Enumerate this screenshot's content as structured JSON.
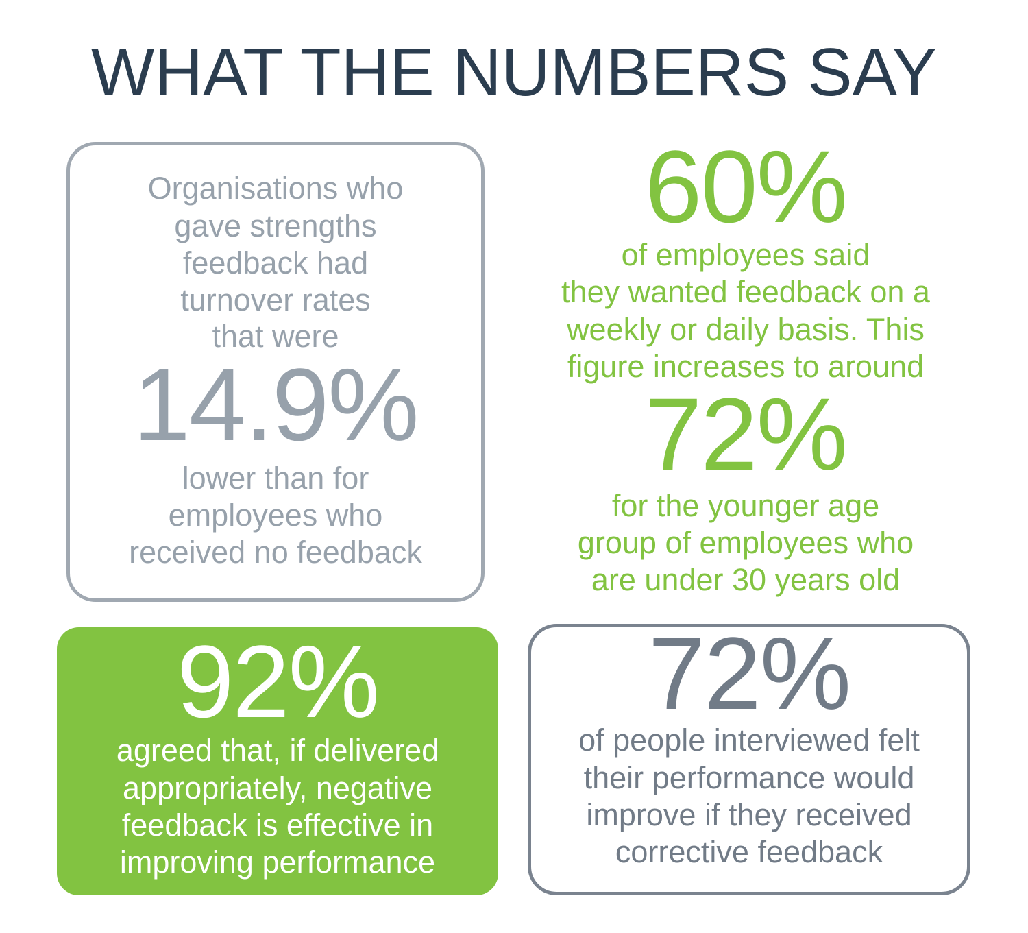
{
  "title": "WHAT THE NUMBERS SAY",
  "panels": [
    {
      "lines_before": [
        "Organisations who",
        "gave strengths",
        "feedback had",
        "turnover rates",
        "that were"
      ],
      "stat": "14.9%",
      "lines_after": [
        "lower than for",
        "employees who",
        "received no feedback"
      ]
    },
    {
      "stat": "60%",
      "lines_after": [
        "of employees said",
        "they wanted feedback on a",
        "weekly or daily basis. This",
        "figure increases to around"
      ],
      "stat_2": "72%",
      "lines_after_2": [
        "for the younger age",
        "group of employees who",
        "are under 30 years old"
      ]
    },
    {
      "stat": "92%",
      "lines_after": [
        "agreed that, if delivered",
        "appropriately, negative",
        "feedback is effective in",
        "improving performance"
      ]
    },
    {
      "stat": "72%",
      "lines_after": [
        "of people interviewed felt",
        "their performance would",
        "improve if they received",
        "corrective feedback"
      ]
    }
  ]
}
